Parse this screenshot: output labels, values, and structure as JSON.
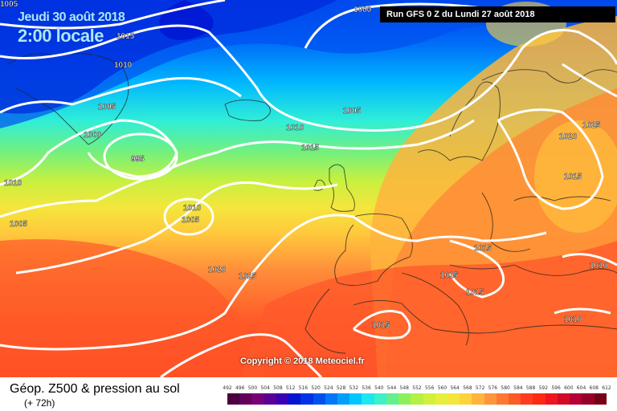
{
  "title": {
    "date": "Jeudi 30 août 2018",
    "time": "2:00 locale"
  },
  "run_info": "Run GFS 0 Z du Lundi 27 août 2018",
  "copyright": "Copyright © 2018 Meteociel.fr",
  "legend": {
    "title": "Géop. Z500 & pression au sol",
    "subtitle": "(+ 72h)",
    "scale": [
      "492",
      "496",
      "500",
      "504",
      "508",
      "512",
      "516",
      "520",
      "524",
      "528",
      "532",
      "536",
      "540",
      "544",
      "548",
      "552",
      "556",
      "560",
      "564",
      "568",
      "572",
      "576",
      "580",
      "584",
      "588",
      "592",
      "596",
      "600",
      "604",
      "608",
      "612"
    ],
    "colors": [
      "#4b0040",
      "#64005a",
      "#780078",
      "#5a0096",
      "#3c00b4",
      "#0014d2",
      "#0032e6",
      "#0050f0",
      "#0078f8",
      "#00a0fa",
      "#00c8ff",
      "#1ee6f0",
      "#3cf0c8",
      "#64f08c",
      "#8cf05a",
      "#b4f046",
      "#d2f03c",
      "#e6f03c",
      "#f5e63c",
      "#ffd23c",
      "#ffb43c",
      "#ff963c",
      "#ff7832",
      "#ff5a28",
      "#ff3c1e",
      "#ff2814",
      "#f0141e",
      "#d20a28",
      "#b40032",
      "#960028",
      "#780014"
    ]
  },
  "isobars": [
    {
      "label": "1000",
      "color": "#ffffff"
    },
    {
      "label": "1015",
      "color": "#ffffff"
    },
    {
      "label": "1010",
      "color": "#ffffff"
    },
    {
      "label": "1005",
      "color": "#ffffff"
    },
    {
      "label": "1000",
      "color": "#ffffff"
    },
    {
      "label": "995",
      "color": "#ffffff"
    },
    {
      "label": "1010",
      "color": "#ffffff"
    },
    {
      "label": "1005",
      "color": "#ffffff"
    },
    {
      "label": "1005",
      "color": "#ffffff"
    },
    {
      "label": "1010",
      "color": "#ffffff"
    },
    {
      "label": "1015",
      "color": "#ffffff"
    },
    {
      "label": "1010",
      "color": "#ffffff"
    },
    {
      "label": "1005",
      "color": "#ffffff"
    },
    {
      "label": "1020",
      "color": "#ffffff"
    },
    {
      "label": "1025",
      "color": "#ffffff"
    },
    {
      "label": "1025",
      "color": "#ffffff"
    },
    {
      "label": "1020",
      "color": "#ffffff"
    },
    {
      "label": "1015",
      "color": "#ffffff"
    },
    {
      "label": "1015",
      "color": "#ffffff"
    },
    {
      "label": "1015",
      "color": "#ffffff"
    },
    {
      "label": "1015",
      "color": "#ffffff"
    },
    {
      "label": "1015",
      "color": "#ffffff"
    },
    {
      "label": "1010",
      "color": "#ffffff"
    },
    {
      "label": "1010",
      "color": "#ffffff"
    },
    {
      "label": "1005",
      "color": "#ffffff"
    }
  ]
}
